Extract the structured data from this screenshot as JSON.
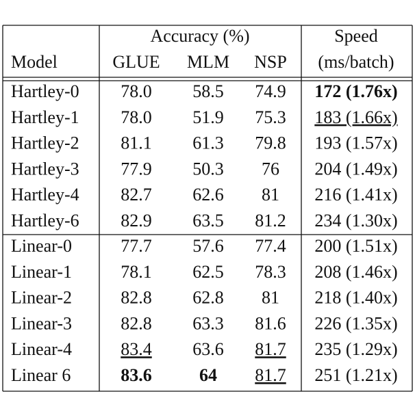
{
  "table": {
    "header_top": [
      "Accuracy (%)",
      "Speed"
    ],
    "header_bottom": [
      "Model",
      "GLUE",
      "MLM",
      "NSP",
      "(ms/batch)"
    ],
    "rows": [
      [
        "Hartley-0",
        "78.0",
        "58.5",
        "74.9",
        "172 (1.76x)"
      ],
      [
        "Hartley-1",
        "78.0",
        "51.9",
        "75.3",
        "183 (1.66x)"
      ],
      [
        "Hartley-2",
        "81.1",
        "61.3",
        "79.8",
        "193 (1.57x)"
      ],
      [
        "Hartley-3",
        "77.9",
        "50.3",
        "76",
        "204 (1.49x)"
      ],
      [
        "Hartley-4",
        "82.7",
        "62.6",
        "81",
        "216 (1.41x)"
      ],
      [
        "Hartley-6",
        "82.9",
        "63.5",
        "81.2",
        "234 (1.30x)"
      ],
      [
        "Linear-0",
        "77.7",
        "57.6",
        "77.4",
        "200 (1.51x)"
      ],
      [
        "Linear-1",
        "78.1",
        "62.5",
        "78.3",
        "208 (1.46x)"
      ],
      [
        "Linear-2",
        "82.8",
        "62.8",
        "81",
        "218 (1.40x)"
      ],
      [
        "Linear-3",
        "82.8",
        "63.3",
        "81.6",
        "226 (1.35x)"
      ],
      [
        "Linear-4",
        "83.4",
        "63.6",
        "81.7",
        "235 (1.29x)"
      ],
      [
        "Linear 6",
        "83.6",
        "64",
        "81.7",
        "251 (1.21x)"
      ]
    ]
  }
}
